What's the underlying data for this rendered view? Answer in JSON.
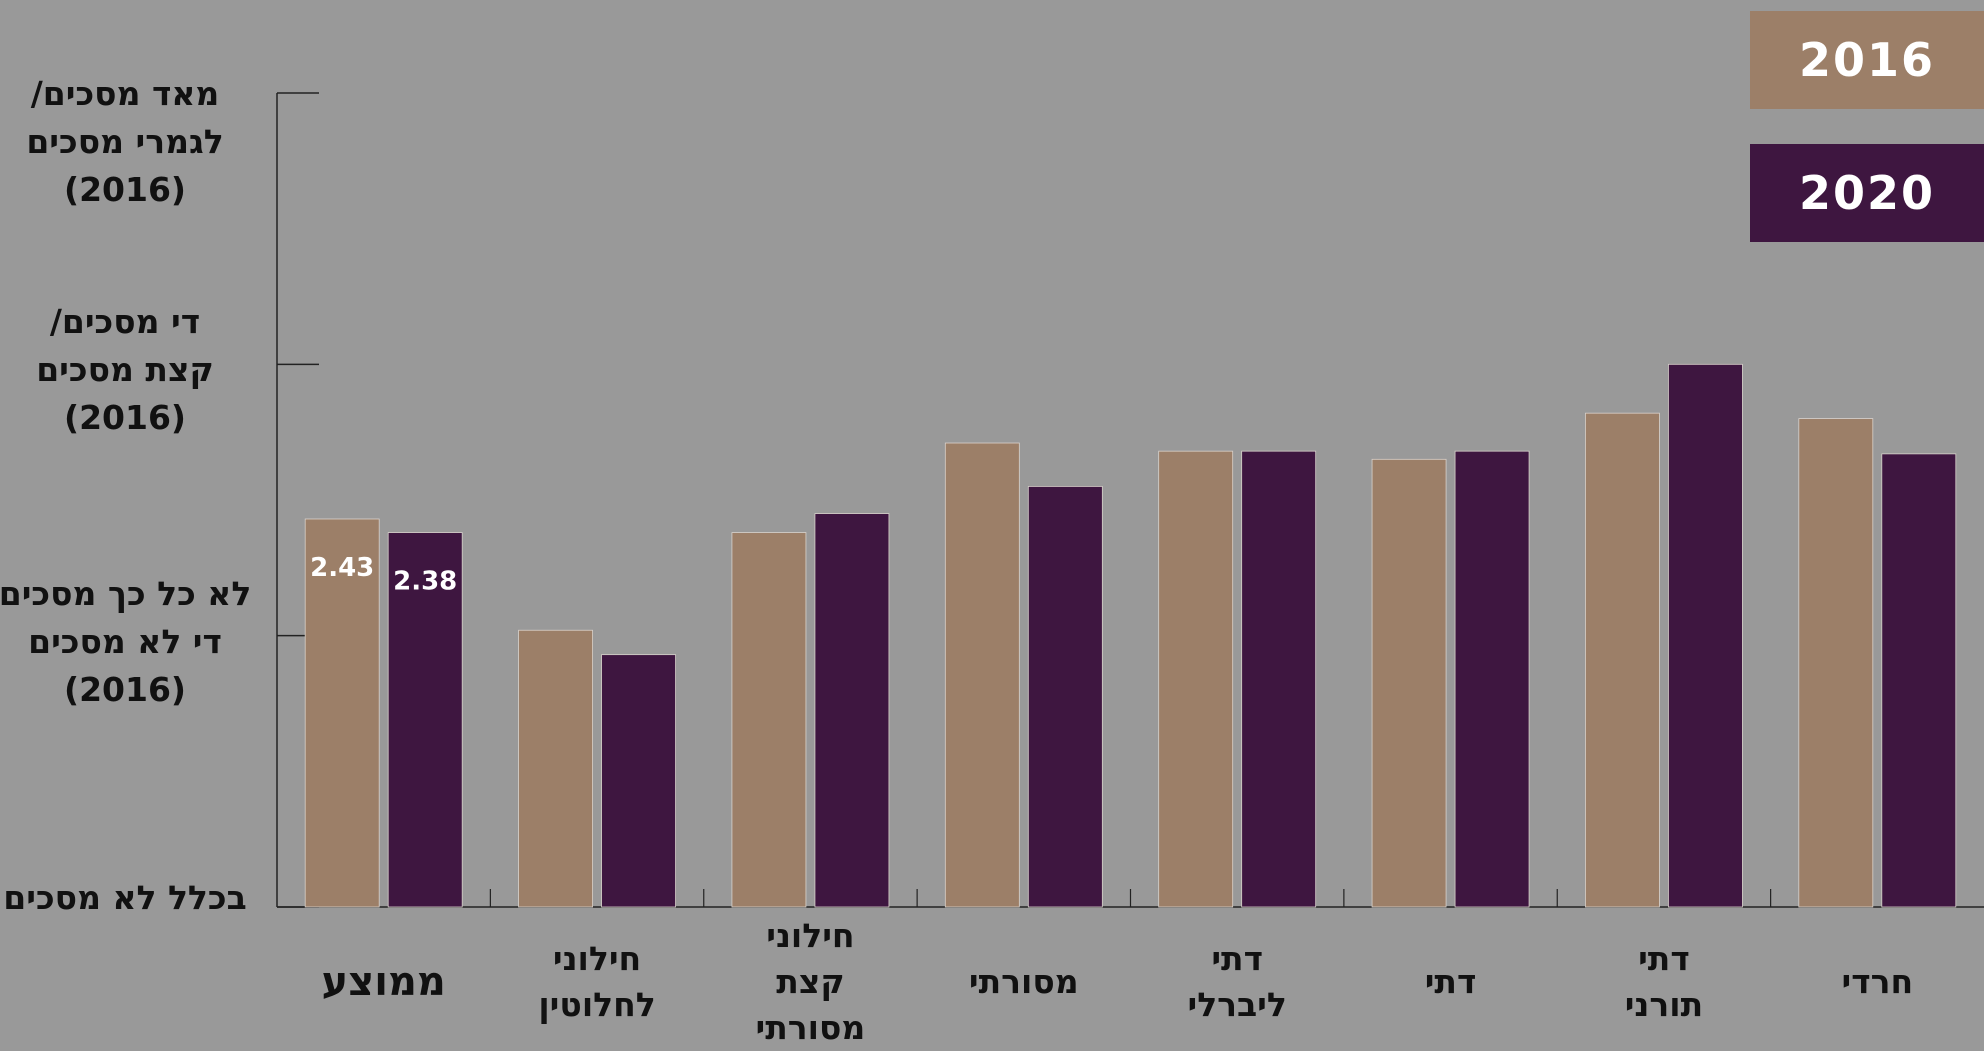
{
  "chart_data": {
    "type": "bar",
    "categories": [
      "ממוצע",
      "חילוני לחלוטין",
      "חילוני קצת מסורתי",
      "מסורתי",
      "דתי ליברלי",
      "דתי",
      "דתי תורני",
      "חרדי"
    ],
    "category_lines": [
      [
        "ממוצע"
      ],
      [
        "חילוני",
        "לחלוטין"
      ],
      [
        "חילוני",
        "קצת",
        "מסורתי"
      ],
      [
        "מסורתי"
      ],
      [
        "דתי",
        "ליברלי"
      ],
      [
        "דתי"
      ],
      [
        "דתי",
        "תורני"
      ],
      [
        "חרדי"
      ]
    ],
    "series": [
      {
        "name": "2016",
        "color": "#9c7f68",
        "values": [
          2.43,
          2.02,
          2.38,
          2.71,
          2.68,
          2.65,
          2.82,
          2.8
        ]
      },
      {
        "name": "2020",
        "color": "#3e1640",
        "values": [
          2.38,
          1.93,
          2.45,
          2.55,
          2.68,
          2.68,
          3.0,
          2.67
        ]
      }
    ],
    "data_labels": {
      "2016": [
        "2.43",
        "",
        "",
        "",
        "",
        "",
        "",
        ""
      ],
      "2020": [
        "2.38",
        "",
        "",
        "",
        "",
        "",
        "",
        ""
      ]
    },
    "ylim": [
      1,
      4
    ],
    "y_ticks": [
      1,
      2,
      3,
      4
    ],
    "y_tick_labels": [
      [
        "בכלל לא מסכים"
      ],
      [
        "לא כל כך מסכים",
        "די לא מסכים",
        "(2016)"
      ],
      [
        "די מסכים/",
        "קצת מסכים",
        "(2016)"
      ],
      [
        "מאד מסכים/",
        "לגמרי מסכים",
        "(2016)"
      ]
    ],
    "legend": [
      "2016",
      "2020"
    ],
    "legend_position": "top-right",
    "grid": false,
    "axis_direction": "rtl"
  }
}
